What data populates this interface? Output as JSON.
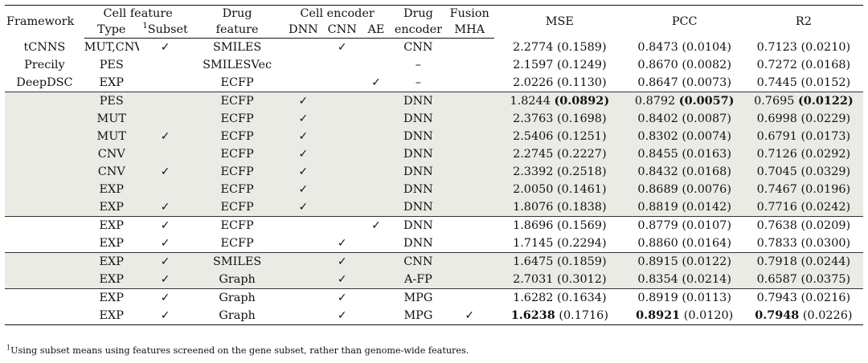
{
  "headers": {
    "framework": "Framework",
    "cell_feature": "Cell feature",
    "type": "Type",
    "subset_sup": "1",
    "subset": "Subset",
    "drug": "Drug",
    "feature": "feature",
    "cell_encoder": "Cell encoder",
    "dnn": "DNN",
    "cnn": "CNN",
    "ae": "AE",
    "drug_encoder_top": "Drug",
    "drug_encoder_bottom": "encoder",
    "fusion": "Fusion",
    "mha": "MHA",
    "mse": "MSE",
    "pcc": "PCC",
    "r2": "R2"
  },
  "check_symbol": "✓",
  "rows": [
    {
      "framework": "tCNNS",
      "type": "MUT,CNV",
      "subset": true,
      "drug_feature": "SMILES",
      "dnn": false,
      "cnn": true,
      "ae": false,
      "drug_encoder": "CNN",
      "mha": false,
      "mse": "2.2774",
      "mse_sd": "(0.1589)",
      "pcc": "0.8473",
      "pcc_sd": "(0.0104)",
      "r2": "0.7123",
      "r2_sd": "(0.0210)"
    },
    {
      "framework": "Precily",
      "type": "PES",
      "subset": false,
      "drug_feature": "SMILESVec",
      "dnn": false,
      "cnn": false,
      "ae": false,
      "drug_encoder": "–",
      "mha": false,
      "mse": "2.1597",
      "mse_sd": "(0.1249)",
      "pcc": "0.8670",
      "pcc_sd": "(0.0082)",
      "r2": "0.7272",
      "r2_sd": "(0.0168)"
    },
    {
      "framework": "DeepDSC",
      "type": "EXP",
      "subset": false,
      "drug_feature": "ECFP",
      "dnn": false,
      "cnn": false,
      "ae": true,
      "drug_encoder": "–",
      "mha": false,
      "mse": "2.0226",
      "mse_sd": "(0.1130)",
      "pcc": "0.8647",
      "pcc_sd": "(0.0073)",
      "r2": "0.7445",
      "r2_sd": "(0.0152)"
    },
    {
      "framework": "",
      "type": "PES",
      "subset": false,
      "drug_feature": "ECFP",
      "dnn": true,
      "cnn": false,
      "ae": false,
      "drug_encoder": "DNN",
      "mha": false,
      "mse": "1.8244",
      "mse_sd": "(0.0892)",
      "pcc": "0.8792",
      "pcc_sd": "(0.0057)",
      "r2": "0.7695",
      "r2_sd": "(0.0122)",
      "bold": "sd"
    },
    {
      "framework": "",
      "type": "MUT",
      "subset": false,
      "drug_feature": "ECFP",
      "dnn": true,
      "cnn": false,
      "ae": false,
      "drug_encoder": "DNN",
      "mha": false,
      "mse": "2.3763",
      "mse_sd": "(0.1698)",
      "pcc": "0.8402",
      "pcc_sd": "(0.0087)",
      "r2": "0.6998",
      "r2_sd": "(0.0229)"
    },
    {
      "framework": "",
      "type": "MUT",
      "subset": true,
      "drug_feature": "ECFP",
      "dnn": true,
      "cnn": false,
      "ae": false,
      "drug_encoder": "DNN",
      "mha": false,
      "mse": "2.5406",
      "mse_sd": "(0.1251)",
      "pcc": "0.8302",
      "pcc_sd": "(0.0074)",
      "r2": "0.6791",
      "r2_sd": "(0.0173)"
    },
    {
      "framework": "",
      "type": "CNV",
      "subset": false,
      "drug_feature": "ECFP",
      "dnn": true,
      "cnn": false,
      "ae": false,
      "drug_encoder": "DNN",
      "mha": false,
      "mse": "2.2745",
      "mse_sd": "(0.2227)",
      "pcc": "0.8455",
      "pcc_sd": "(0.0163)",
      "r2": "0.7126",
      "r2_sd": "(0.0292)"
    },
    {
      "framework": "",
      "type": "CNV",
      "subset": true,
      "drug_feature": "ECFP",
      "dnn": true,
      "cnn": false,
      "ae": false,
      "drug_encoder": "DNN",
      "mha": false,
      "mse": "2.3392",
      "mse_sd": "(0.2518)",
      "pcc": "0.8432",
      "pcc_sd": "(0.0168)",
      "r2": "0.7045",
      "r2_sd": "(0.0329)"
    },
    {
      "framework": "",
      "type": "EXP",
      "subset": false,
      "drug_feature": "ECFP",
      "dnn": true,
      "cnn": false,
      "ae": false,
      "drug_encoder": "DNN",
      "mha": false,
      "mse": "2.0050",
      "mse_sd": "(0.1461)",
      "pcc": "0.8689",
      "pcc_sd": "(0.0076)",
      "r2": "0.7467",
      "r2_sd": "(0.0196)"
    },
    {
      "framework": "",
      "type": "EXP",
      "subset": true,
      "drug_feature": "ECFP",
      "dnn": true,
      "cnn": false,
      "ae": false,
      "drug_encoder": "DNN",
      "mha": false,
      "mse": "1.8076",
      "mse_sd": "(0.1838)",
      "pcc": "0.8819",
      "pcc_sd": "(0.0142)",
      "r2": "0.7716",
      "r2_sd": "(0.0242)"
    },
    {
      "framework": "",
      "type": "EXP",
      "subset": true,
      "drug_feature": "ECFP",
      "dnn": false,
      "cnn": false,
      "ae": true,
      "drug_encoder": "DNN",
      "mha": false,
      "mse": "1.8696",
      "mse_sd": "(0.1569)",
      "pcc": "0.8779",
      "pcc_sd": "(0.0107)",
      "r2": "0.7638",
      "r2_sd": "(0.0209)"
    },
    {
      "framework": "",
      "type": "EXP",
      "subset": true,
      "drug_feature": "ECFP",
      "dnn": false,
      "cnn": true,
      "ae": false,
      "drug_encoder": "DNN",
      "mha": false,
      "mse": "1.7145",
      "mse_sd": "(0.2294)",
      "pcc": "0.8860",
      "pcc_sd": "(0.0164)",
      "r2": "0.7833",
      "r2_sd": "(0.0300)"
    },
    {
      "framework": "",
      "type": "EXP",
      "subset": true,
      "drug_feature": "SMILES",
      "dnn": false,
      "cnn": true,
      "ae": false,
      "drug_encoder": "CNN",
      "mha": false,
      "mse": "1.6475",
      "mse_sd": "(0.1859)",
      "pcc": "0.8915",
      "pcc_sd": "(0.0122)",
      "r2": "0.7918",
      "r2_sd": "(0.0244)"
    },
    {
      "framework": "",
      "type": "EXP",
      "subset": true,
      "drug_feature": "Graph",
      "dnn": false,
      "cnn": true,
      "ae": false,
      "drug_encoder": "A-FP",
      "mha": false,
      "mse": "2.7031",
      "mse_sd": "(0.3012)",
      "pcc": "0.8354",
      "pcc_sd": "(0.0214)",
      "r2": "0.6587",
      "r2_sd": "(0.0375)"
    },
    {
      "framework": "",
      "type": "EXP",
      "subset": true,
      "drug_feature": "Graph",
      "dnn": false,
      "cnn": true,
      "ae": false,
      "drug_encoder": "MPG",
      "mha": false,
      "mse": "1.6282",
      "mse_sd": "(0.1634)",
      "pcc": "0.8919",
      "pcc_sd": "(0.0113)",
      "r2": "0.7943",
      "r2_sd": "(0.0216)"
    },
    {
      "framework": "",
      "type": "EXP",
      "subset": true,
      "drug_feature": "Graph",
      "dnn": false,
      "cnn": true,
      "ae": false,
      "drug_encoder": "MPG",
      "mha": true,
      "mse": "1.6238",
      "mse_sd": "(0.1716)",
      "pcc": "0.8921",
      "pcc_sd": "(0.0120)",
      "r2": "0.7948",
      "r2_sd": "(0.0226)",
      "bold": "value"
    }
  ],
  "footnote": {
    "sup": "1",
    "text": "Using subset means using features screened on the gene subset, rather than genome-wide features."
  }
}
